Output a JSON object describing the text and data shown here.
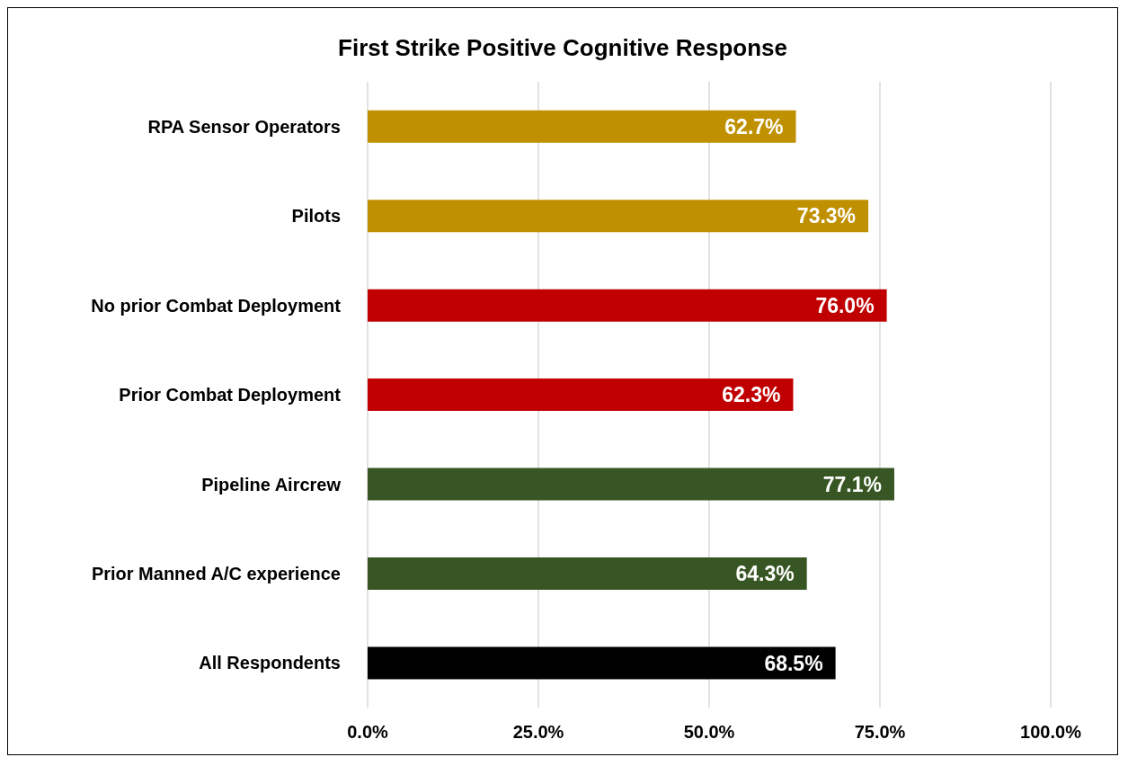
{
  "chart_data": {
    "type": "bar",
    "orientation": "horizontal",
    "title": "First Strike Positive Cognitive Response",
    "categories": [
      "RPA Sensor Operators",
      "Pilots",
      "No prior Combat Deployment",
      "Prior Combat Deployment",
      "Pipeline Aircrew",
      "Prior Manned A/C experience",
      "All Respondents"
    ],
    "values": [
      62.7,
      73.3,
      76.0,
      62.3,
      77.1,
      64.3,
      68.5
    ],
    "colors": [
      "#bf9000",
      "#bf9000",
      "#c00000",
      "#c00000",
      "#375623",
      "#375623",
      "#000000"
    ],
    "value_labels": [
      "62.7%",
      "73.3%",
      "76.0%",
      "62.3%",
      "77.1%",
      "64.3%",
      "68.5%"
    ],
    "xlim": [
      0,
      100
    ],
    "xticks": [
      {
        "value": 0,
        "label": "0.0%"
      },
      {
        "value": 25,
        "label": "25.0%"
      },
      {
        "value": 50,
        "label": "50.0%"
      },
      {
        "value": 75,
        "label": "75.0%"
      },
      {
        "value": 100,
        "label": "100.0%"
      }
    ],
    "grid": "x"
  }
}
